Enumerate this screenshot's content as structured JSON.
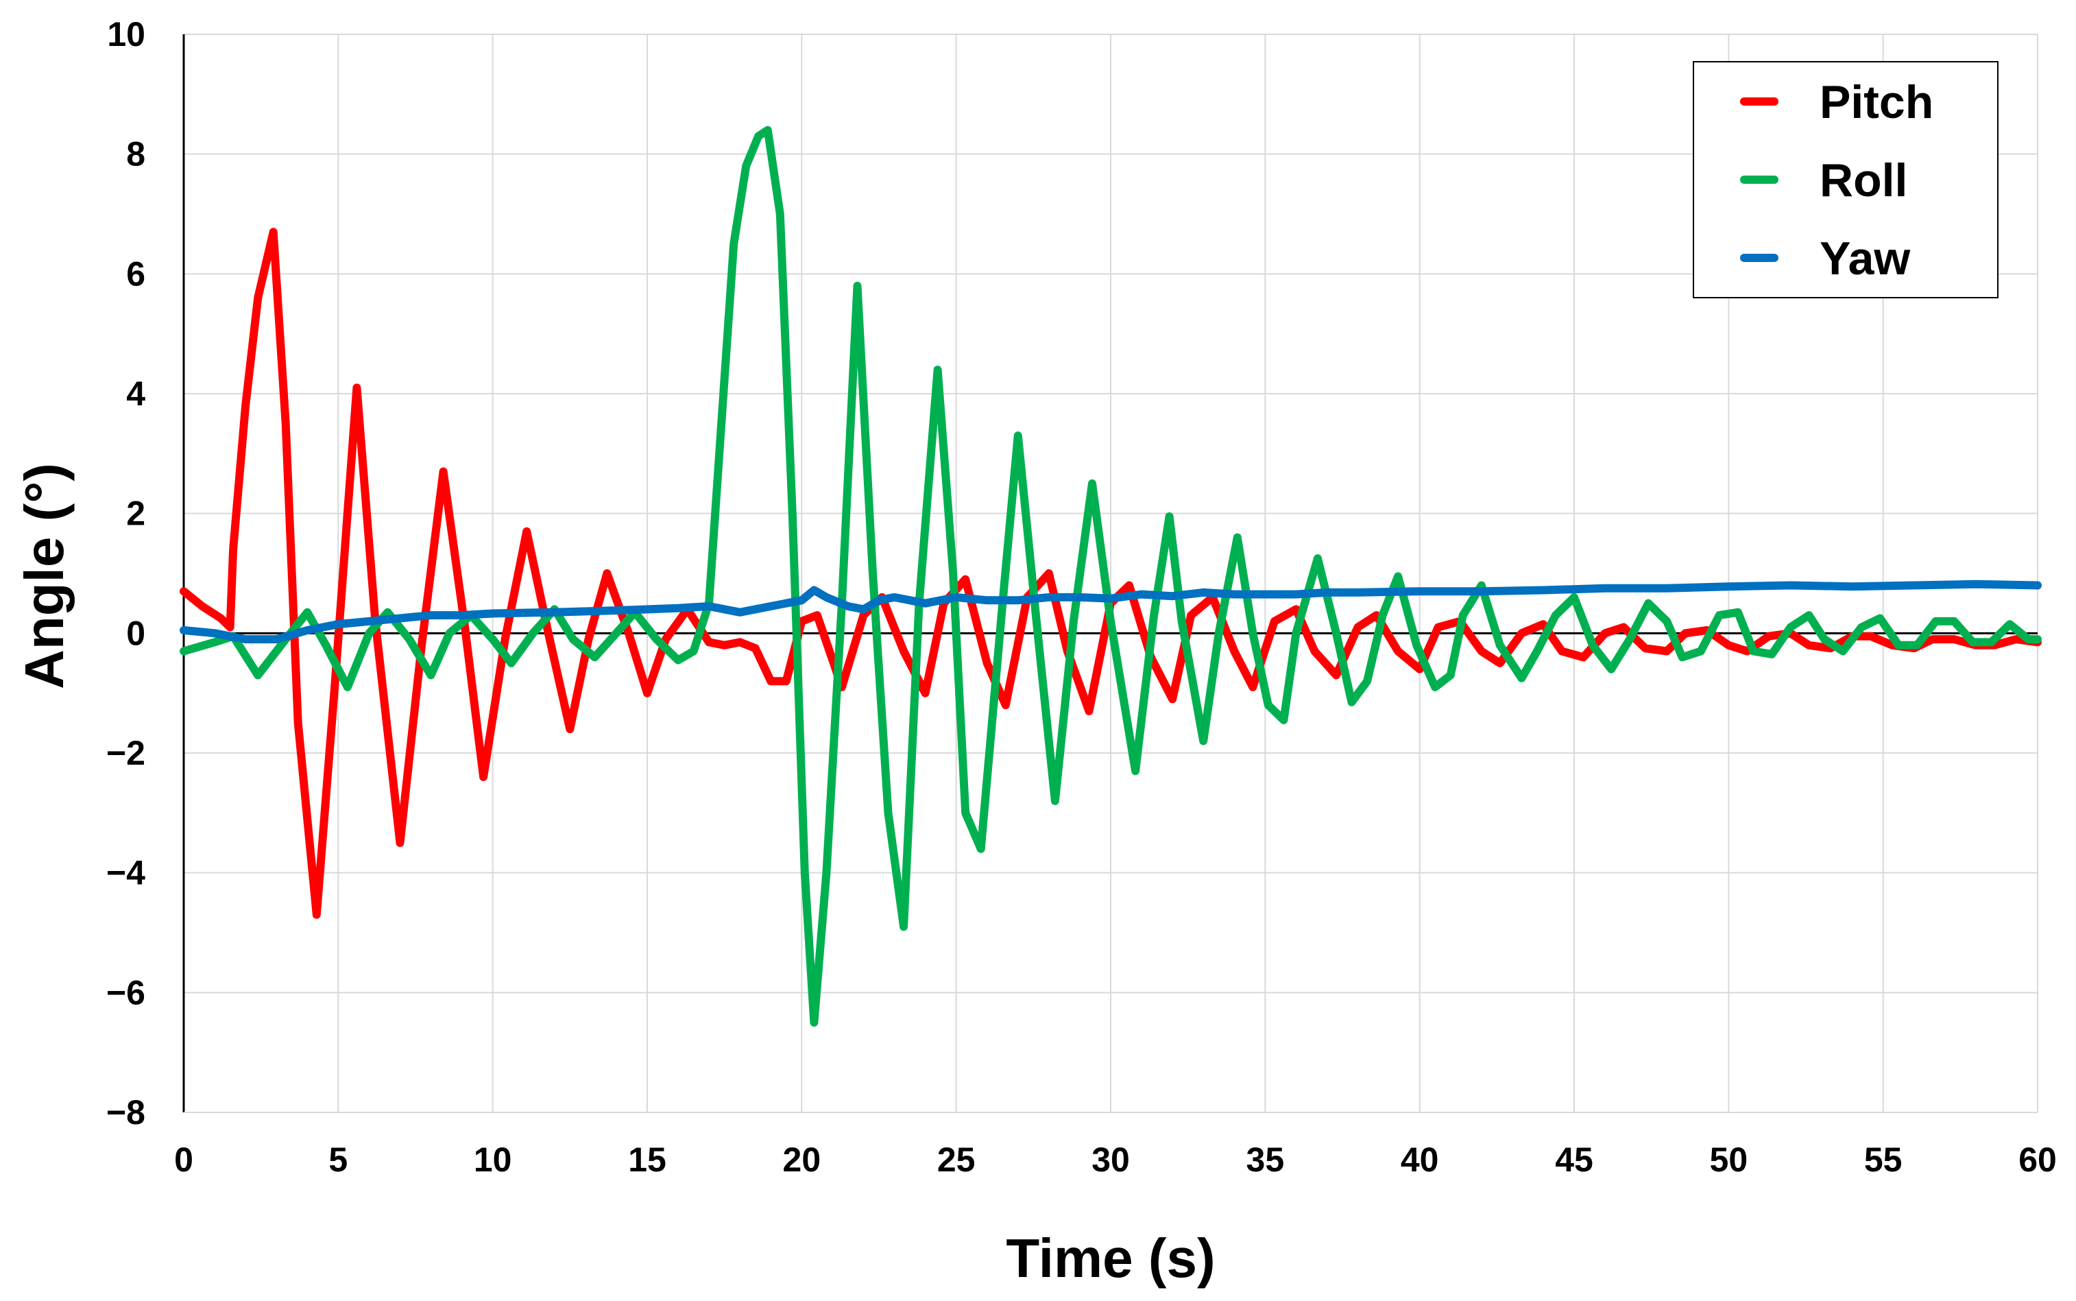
{
  "chart_data": {
    "type": "line",
    "title": "",
    "xlabel": "Time (s)",
    "ylabel": "Angle (°)",
    "xlim": [
      0,
      60
    ],
    "ylim": [
      -8,
      10
    ],
    "xticks": [
      0,
      5,
      10,
      15,
      20,
      25,
      30,
      35,
      40,
      45,
      50,
      55,
      60
    ],
    "yticks": [
      -8,
      -6,
      -4,
      -2,
      0,
      2,
      4,
      6,
      8,
      10
    ],
    "ytick_labels": [
      "−8",
      "−6",
      "−4",
      "−2",
      "0",
      "2",
      "4",
      "6",
      "8",
      "10"
    ],
    "grid": true,
    "zero_line": true,
    "legend_position": "top-right",
    "series": [
      {
        "name": "Pitch",
        "color": "#ff0000",
        "x": [
          0,
          0.6,
          1.2,
          1.5,
          1.6,
          2.0,
          2.4,
          2.9,
          3.3,
          3.7,
          4.3,
          4.9,
          5.6,
          6.2,
          7.0,
          7.7,
          8.4,
          9.1,
          9.7,
          10.4,
          11.1,
          11.8,
          12.5,
          13.1,
          13.7,
          14.4,
          15.0,
          15.6,
          16.3,
          17.0,
          17.5,
          18.0,
          18.5,
          19.0,
          19.5,
          20.0,
          20.5,
          21.3,
          22.0,
          22.6,
          23.3,
          24.0,
          24.6,
          25.3,
          26.0,
          26.6,
          27.3,
          28.0,
          28.6,
          29.3,
          30.0,
          30.6,
          31.3,
          32.0,
          32.6,
          33.3,
          34.0,
          34.6,
          35.3,
          36.0,
          36.6,
          37.3,
          38.0,
          38.6,
          39.3,
          40.0,
          40.6,
          41.3,
          42.0,
          42.6,
          43.3,
          44.0,
          44.6,
          45.3,
          46.0,
          46.6,
          47.3,
          48.0,
          48.6,
          49.3,
          50.0,
          50.6,
          51.3,
          52.0,
          52.6,
          53.3,
          54.0,
          54.6,
          55.3,
          56.0,
          56.6,
          57.3,
          58.0,
          58.6,
          59.3,
          60.0
        ],
        "y": [
          0.7,
          0.45,
          0.25,
          0.1,
          1.4,
          3.8,
          5.6,
          6.7,
          3.5,
          -1.5,
          -4.7,
          -0.8,
          4.1,
          0.2,
          -3.5,
          -0.2,
          2.7,
          0.1,
          -2.4,
          -0.1,
          1.7,
          0.0,
          -1.6,
          -0.1,
          1.0,
          0.0,
          -1.0,
          -0.1,
          0.4,
          -0.15,
          -0.2,
          -0.15,
          -0.25,
          -0.8,
          -0.8,
          0.2,
          0.3,
          -0.9,
          0.3,
          0.6,
          -0.3,
          -1.0,
          0.5,
          0.9,
          -0.5,
          -1.2,
          0.6,
          1.0,
          -0.3,
          -1.3,
          0.5,
          0.8,
          -0.4,
          -1.1,
          0.3,
          0.6,
          -0.3,
          -0.9,
          0.2,
          0.4,
          -0.3,
          -0.7,
          0.1,
          0.3,
          -0.3,
          -0.6,
          0.1,
          0.2,
          -0.3,
          -0.5,
          0.0,
          0.15,
          -0.3,
          -0.4,
          0.0,
          0.1,
          -0.25,
          -0.3,
          0.0,
          0.05,
          -0.2,
          -0.3,
          -0.05,
          0.0,
          -0.2,
          -0.25,
          -0.05,
          -0.05,
          -0.2,
          -0.25,
          -0.1,
          -0.1,
          -0.2,
          -0.2,
          -0.1,
          -0.15
        ]
      },
      {
        "name": "Roll",
        "color": "#00b050",
        "x": [
          0,
          1.0,
          1.6,
          2.4,
          3.3,
          4.0,
          4.6,
          5.3,
          6.0,
          6.6,
          7.3,
          8.0,
          8.6,
          9.3,
          10.0,
          10.6,
          11.3,
          12.0,
          12.6,
          13.3,
          14.0,
          14.6,
          15.3,
          16.0,
          16.5,
          17.0,
          17.4,
          17.8,
          18.2,
          18.6,
          18.9,
          19.3,
          19.7,
          20.1,
          20.4,
          20.8,
          21.3,
          21.8,
          22.3,
          22.8,
          23.3,
          23.8,
          24.4,
          24.9,
          25.3,
          25.8,
          26.5,
          27.0,
          27.6,
          28.2,
          28.8,
          29.4,
          30.0,
          30.8,
          31.4,
          31.9,
          32.3,
          33.0,
          33.5,
          34.1,
          34.6,
          35.1,
          35.6,
          36.0,
          36.7,
          37.3,
          37.8,
          38.3,
          38.8,
          39.3,
          39.9,
          40.5,
          41.0,
          41.4,
          42.0,
          42.6,
          43.3,
          43.8,
          44.4,
          45.0,
          45.6,
          46.2,
          46.8,
          47.4,
          48.0,
          48.5,
          49.1,
          49.7,
          50.3,
          50.8,
          51.4,
          52.0,
          52.6,
          53.1,
          53.7,
          54.3,
          54.9,
          55.5,
          56.1,
          56.7,
          57.3,
          57.9,
          58.5,
          59.1,
          59.7,
          60.0
        ],
        "y": [
          -0.3,
          -0.15,
          -0.05,
          -0.7,
          -0.1,
          0.35,
          -0.2,
          -0.9,
          0.0,
          0.35,
          -0.1,
          -0.7,
          0.0,
          0.3,
          -0.1,
          -0.5,
          0.0,
          0.4,
          -0.1,
          -0.4,
          0.0,
          0.35,
          -0.1,
          -0.45,
          -0.3,
          0.5,
          3.5,
          6.5,
          7.8,
          8.3,
          8.4,
          7.0,
          2.0,
          -4.0,
          -6.5,
          -4.0,
          0.5,
          5.8,
          1.0,
          -3.0,
          -4.9,
          0.5,
          4.4,
          1.0,
          -3.0,
          -3.6,
          0.5,
          3.3,
          0.2,
          -2.8,
          0.2,
          2.5,
          0.2,
          -2.3,
          0.3,
          1.95,
          0.2,
          -1.8,
          0.0,
          1.6,
          0.0,
          -1.2,
          -1.45,
          0.0,
          1.25,
          0.0,
          -1.15,
          -0.8,
          0.3,
          0.95,
          -0.2,
          -0.9,
          -0.7,
          0.3,
          0.8,
          -0.2,
          -0.75,
          -0.3,
          0.3,
          0.6,
          -0.2,
          -0.6,
          -0.1,
          0.5,
          0.2,
          -0.4,
          -0.3,
          0.3,
          0.35,
          -0.3,
          -0.35,
          0.1,
          0.3,
          -0.1,
          -0.3,
          0.1,
          0.25,
          -0.2,
          -0.2,
          0.2,
          0.2,
          -0.15,
          -0.15,
          0.15,
          -0.1,
          -0.1
        ]
      },
      {
        "name": "Yaw",
        "color": "#0070c0",
        "x": [
          0,
          1.0,
          2.0,
          3.0,
          4.0,
          5.0,
          6.0,
          7.0,
          8.0,
          9.0,
          10.0,
          12.0,
          14.0,
          16.0,
          17.0,
          18.0,
          19.0,
          20.0,
          20.4,
          20.8,
          21.5,
          22.0,
          22.5,
          23.0,
          24.0,
          25.0,
          26.0,
          27.0,
          28.0,
          29.0,
          30.0,
          31.0,
          32.0,
          33.0,
          34.0,
          35.0,
          36.0,
          37.0,
          38.0,
          40.0,
          42.0,
          44.0,
          46.0,
          48.0,
          50.0,
          52.0,
          54.0,
          56.0,
          58.0,
          60.0
        ],
        "y": [
          0.05,
          0.0,
          -0.1,
          -0.1,
          0.05,
          0.15,
          0.2,
          0.25,
          0.3,
          0.3,
          0.33,
          0.35,
          0.38,
          0.42,
          0.45,
          0.35,
          0.45,
          0.55,
          0.72,
          0.6,
          0.45,
          0.4,
          0.55,
          0.6,
          0.5,
          0.6,
          0.55,
          0.55,
          0.6,
          0.6,
          0.58,
          0.65,
          0.62,
          0.68,
          0.65,
          0.65,
          0.65,
          0.68,
          0.68,
          0.7,
          0.7,
          0.72,
          0.75,
          0.75,
          0.78,
          0.8,
          0.78,
          0.8,
          0.82,
          0.8
        ]
      }
    ]
  }
}
